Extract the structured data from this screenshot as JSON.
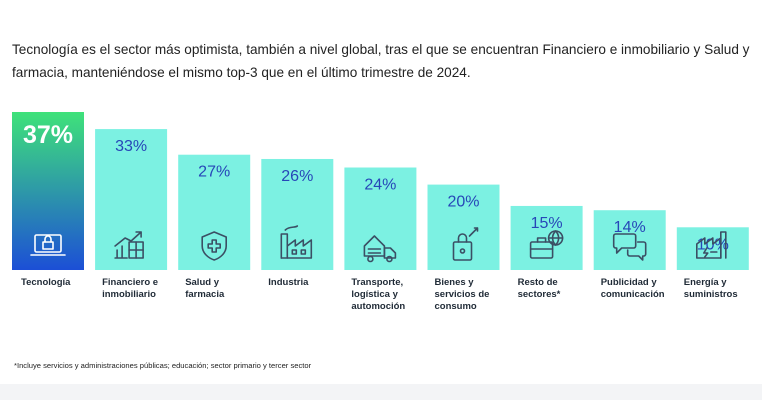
{
  "intro_text": "Tecnología es el sector más optimista, también a nivel global, tras el que se encuentran Financiero e inmobiliario y Salud y farmacia, manteniéndose el mismo top-3 que en el último trimestre de 2024.",
  "footnote": "*Incluye servicios y administraciones públicas; educación; sector primario y tercer sector",
  "colors": {
    "bar_fill": "#7cf1e2",
    "highlight_top": "#3fe27a",
    "highlight_bottom": "#1c4fd6",
    "value_text": "#2747b8",
    "icon_stroke": "#3b4f64",
    "category_text": "#1f2a36"
  },
  "chart_data": {
    "type": "bar",
    "categories": [
      [
        "Tecnología"
      ],
      [
        "Financiero e",
        "inmobiliario"
      ],
      [
        "Salud y",
        "farmacia"
      ],
      [
        "Industria"
      ],
      [
        "Transporte,",
        "logística y",
        "automoción"
      ],
      [
        "Bienes y",
        "servicios de",
        "consumo"
      ],
      [
        "Resto de",
        "sectores*"
      ],
      [
        "Publicidad y",
        "comunicación"
      ],
      [
        "Energía y",
        "suministros"
      ]
    ],
    "values": [
      37,
      33,
      27,
      26,
      24,
      20,
      15,
      14,
      10
    ],
    "value_labels": [
      "37%",
      "33%",
      "27%",
      "26%",
      "24%",
      "20%",
      "15%",
      "14%",
      "10%"
    ],
    "icons": [
      "laptop-lock-icon",
      "growth-chart-icon",
      "health-shield-icon",
      "factory-icon",
      "delivery-truck-icon",
      "shopping-bag-icon",
      "briefcase-globe-icon",
      "speech-bubbles-icon",
      "energy-plant-icon"
    ],
    "highlight_index": 0,
    "unit": "%",
    "ylim": [
      0,
      37
    ],
    "grid": false,
    "legend": "none"
  }
}
